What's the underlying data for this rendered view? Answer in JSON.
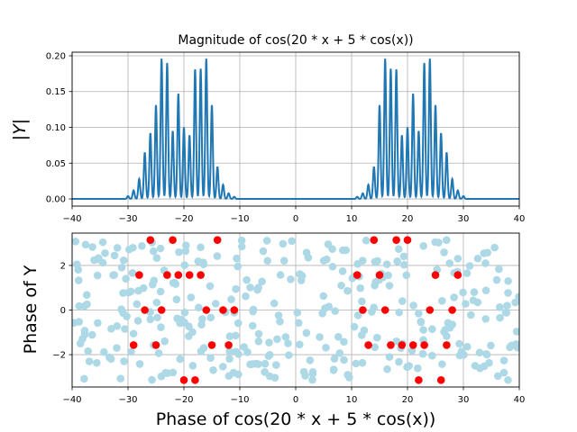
{
  "chart_data": [
    {
      "type": "line",
      "title": "Magnitude of cos(20 * x + 5 * cos(x))",
      "xlabel": "",
      "ylabel": "|Y|",
      "xlim": [
        -40,
        40
      ],
      "ylim": [
        -0.01,
        0.205
      ],
      "xticks": [
        "−40",
        "−30",
        "−20",
        "−10",
        "0",
        "10",
        "20",
        "30",
        "40"
      ],
      "yticks": [
        "0.00",
        "0.05",
        "0.10",
        "0.15",
        "0.20"
      ],
      "grid": true,
      "color": "#1f77b4",
      "peaks": [
        {
          "x": -30,
          "y": 0.004
        },
        {
          "x": -29,
          "y": 0.012
        },
        {
          "x": -28,
          "y": 0.028
        },
        {
          "x": -27,
          "y": 0.065
        },
        {
          "x": -26,
          "y": 0.092
        },
        {
          "x": -25,
          "y": 0.131
        },
        {
          "x": -24,
          "y": 0.196
        },
        {
          "x": -23,
          "y": 0.19
        },
        {
          "x": -22,
          "y": 0.095
        },
        {
          "x": -21,
          "y": 0.147
        },
        {
          "x": -20,
          "y": 0.1
        },
        {
          "x": -19,
          "y": 0.089
        },
        {
          "x": -18,
          "y": 0.181
        },
        {
          "x": -17,
          "y": 0.182
        },
        {
          "x": -16,
          "y": 0.196
        },
        {
          "x": -15,
          "y": 0.131
        },
        {
          "x": -14,
          "y": 0.045
        },
        {
          "x": -13,
          "y": 0.02
        },
        {
          "x": -12,
          "y": 0.008
        },
        {
          "x": -11,
          "y": 0.003
        },
        {
          "x": 11,
          "y": 0.003
        },
        {
          "x": 12,
          "y": 0.008
        },
        {
          "x": 13,
          "y": 0.02
        },
        {
          "x": 14,
          "y": 0.045
        },
        {
          "x": 15,
          "y": 0.131
        },
        {
          "x": 16,
          "y": 0.196
        },
        {
          "x": 17,
          "y": 0.182
        },
        {
          "x": 18,
          "y": 0.181
        },
        {
          "x": 19,
          "y": 0.089
        },
        {
          "x": 20,
          "y": 0.1
        },
        {
          "x": 21,
          "y": 0.147
        },
        {
          "x": 22,
          "y": 0.095
        },
        {
          "x": 23,
          "y": 0.19
        },
        {
          "x": 24,
          "y": 0.196
        },
        {
          "x": 25,
          "y": 0.131
        },
        {
          "x": 26,
          "y": 0.092
        },
        {
          "x": 27,
          "y": 0.065
        },
        {
          "x": 28,
          "y": 0.028
        },
        {
          "x": 29,
          "y": 0.012
        },
        {
          "x": 30,
          "y": 0.004
        }
      ]
    },
    {
      "type": "scatter",
      "title": "",
      "xlabel": "Phase of cos(20 * x + 5 * cos(x))",
      "ylabel": "Phase of Y",
      "xlim": [
        -40,
        40
      ],
      "ylim": [
        -3.45,
        3.45
      ],
      "xticks": [
        "−40",
        "−30",
        "−20",
        "−10",
        "0",
        "10",
        "20",
        "30",
        "40"
      ],
      "yticks": [
        "−2",
        "0",
        "2"
      ],
      "grid": true,
      "series": [
        {
          "color": "#add8e6",
          "points_generated": 340,
          "seed": 7
        },
        {
          "color": "#ff0000",
          "points": [
            [
              -29,
              -1.57
            ],
            [
              -28,
              1.57
            ],
            [
              -27,
              0
            ],
            [
              -26,
              3.14
            ],
            [
              -25,
              -1.57
            ],
            [
              -24,
              0
            ],
            [
              -23,
              1.57
            ],
            [
              -22,
              3.14
            ],
            [
              -21,
              1.57
            ],
            [
              -20,
              -3.14
            ],
            [
              -19,
              1.57
            ],
            [
              -18,
              -3.14
            ],
            [
              -17,
              1.57
            ],
            [
              -16,
              0
            ],
            [
              -15,
              -1.57
            ],
            [
              -14,
              3.14
            ],
            [
              -13,
              0
            ],
            [
              -12,
              -1.57
            ],
            [
              -11,
              0
            ],
            [
              11,
              1.57
            ],
            [
              12,
              0
            ],
            [
              13,
              -1.57
            ],
            [
              14,
              3.14
            ],
            [
              15,
              1.57
            ],
            [
              16,
              0
            ],
            [
              17,
              -1.57
            ],
            [
              18,
              3.14
            ],
            [
              19,
              -1.57
            ],
            [
              20,
              3.14
            ],
            [
              21,
              -1.57
            ],
            [
              22,
              -3.14
            ],
            [
              23,
              -1.57
            ],
            [
              24,
              0
            ],
            [
              25,
              1.57
            ],
            [
              26,
              -3.14
            ],
            [
              27,
              -1.57
            ],
            [
              28,
              0
            ],
            [
              29,
              1.57
            ]
          ]
        }
      ]
    }
  ]
}
